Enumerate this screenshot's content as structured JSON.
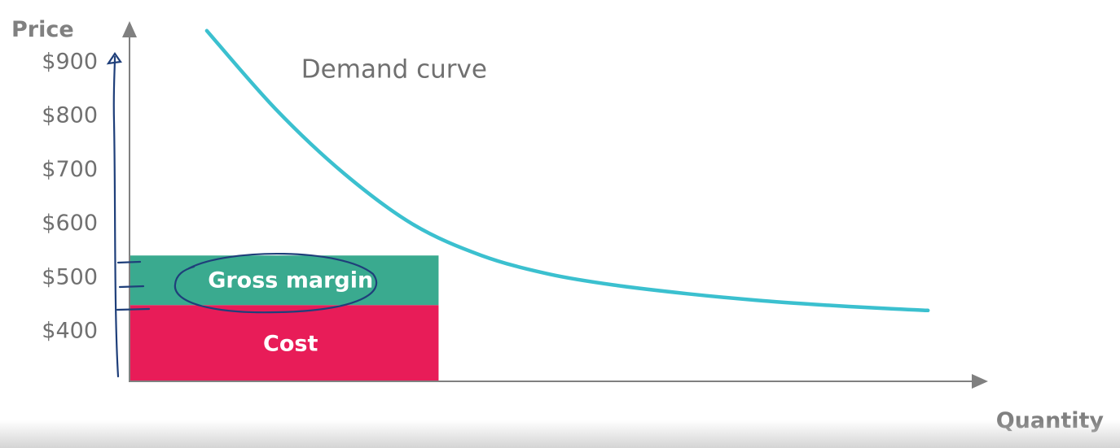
{
  "chart_data": {
    "type": "line",
    "ylabel": "Price",
    "xlabel": "Quantity",
    "y_ticks": [
      "$900",
      "$800",
      "$700",
      "$600",
      "$500",
      "$400"
    ],
    "y_tick_values": [
      900,
      800,
      700,
      600,
      500,
      400
    ],
    "ylim": [
      303,
      1000
    ],
    "series": [
      {
        "name": "Demand curve",
        "color": "#3bc0cf",
        "points": [
          {
            "x": 0.09,
            "y": 955
          },
          {
            "x": 0.17,
            "y": 810
          },
          {
            "x": 0.25,
            "y": 690
          },
          {
            "x": 0.33,
            "y": 596
          },
          {
            "x": 0.41,
            "y": 538
          },
          {
            "x": 0.49,
            "y": 503
          },
          {
            "x": 0.57,
            "y": 482
          },
          {
            "x": 0.65,
            "y": 467
          },
          {
            "x": 0.73,
            "y": 455
          },
          {
            "x": 0.81,
            "y": 446
          },
          {
            "x": 0.89,
            "y": 439
          },
          {
            "x": 0.93,
            "y": 436
          }
        ]
      }
    ],
    "regions": [
      {
        "label": "Cost",
        "color": "#e81c58",
        "x0": 0,
        "x1": 0.36,
        "y0": 303,
        "y1": 446
      },
      {
        "label": "Gross margin",
        "color": "#3aaa8f",
        "x0": 0,
        "x1": 0.36,
        "y0": 446,
        "y1": 538
      }
    ],
    "annotations": [
      {
        "text": "Demand curve",
        "x": 0.2,
        "y": 868
      }
    ],
    "hand_drawn_color": "#1f3f7a"
  }
}
